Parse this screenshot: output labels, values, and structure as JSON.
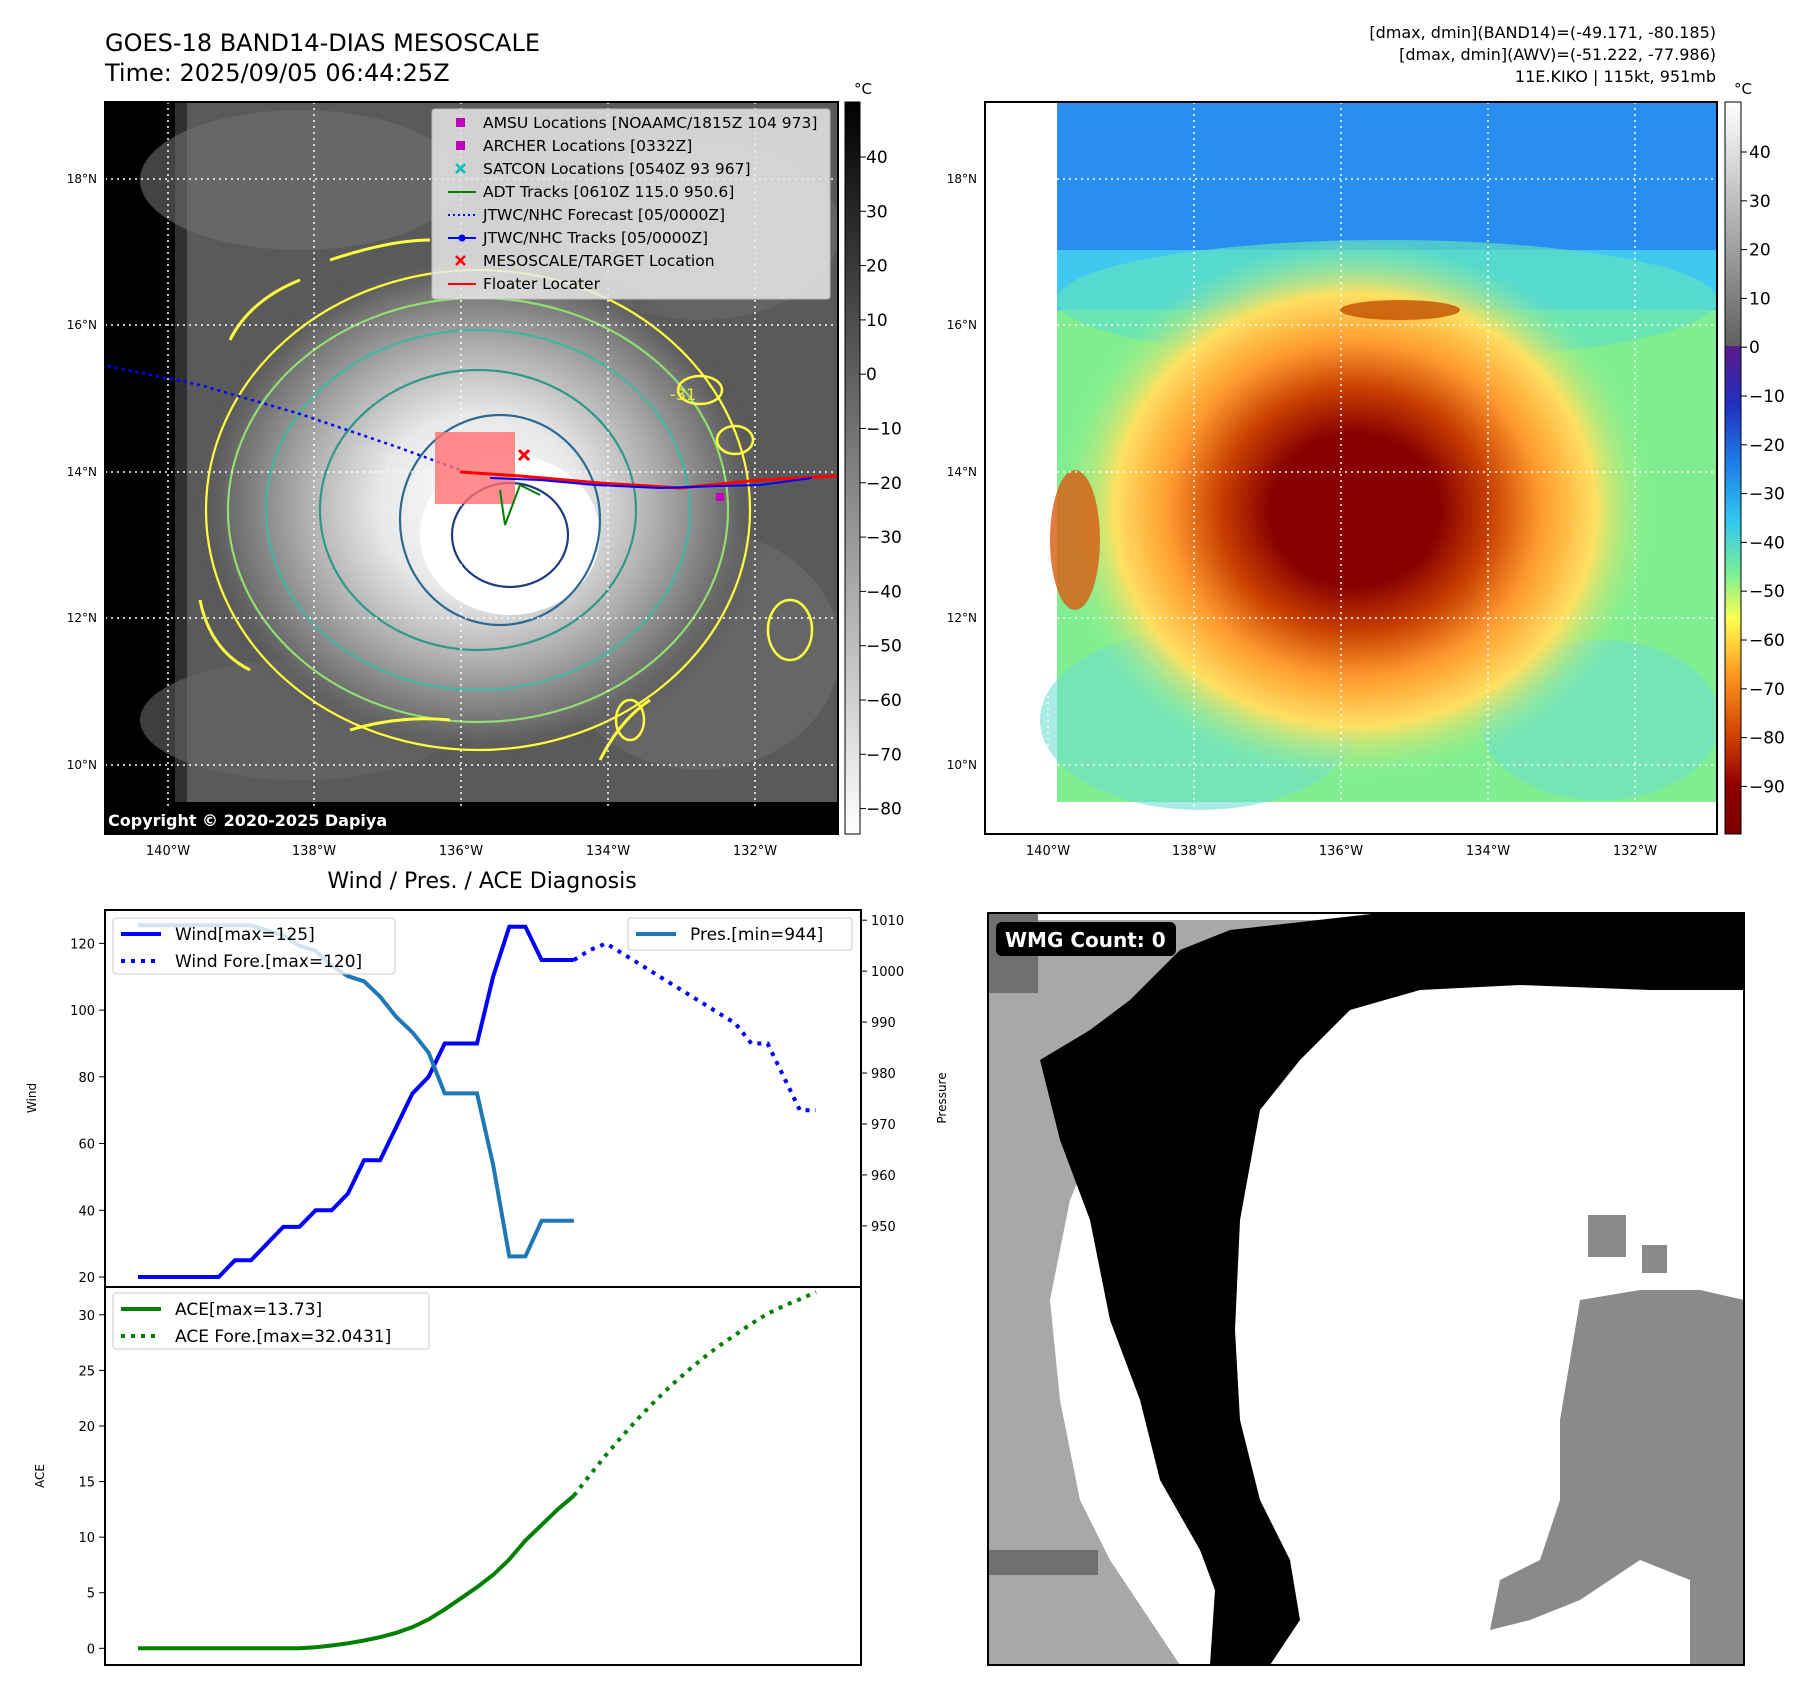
{
  "header": {
    "title_line1": "GOES-18 BAND14-DIAS MESOSCALE",
    "title_line2": "Time: 2025/09/05 06:44:25Z",
    "stats_line1": "[dmax, dmin](BAND14)=(-49.171, -80.185)",
    "stats_line2": "[dmax, dmin](AWV)=(-51.222, -77.986)",
    "stats_line3": "11E.KIKO | 115kt, 951mb"
  },
  "map_ir": {
    "copyright": "Copyright © 2020-2025 Dapiya",
    "legend": [
      {
        "label": "AMSU Locations [NOAAMC/1815Z 104 973]",
        "color": "#c000c0",
        "marker": "square"
      },
      {
        "label": "ARCHER Locations [0332Z]",
        "color": "#c000c0",
        "marker": "square"
      },
      {
        "label": "SATCON Locations [0540Z 93 967]",
        "color": "#00bfbf",
        "marker": "x"
      },
      {
        "label": "ADT Tracks [0610Z 115.0 950.6]",
        "color": "#008000",
        "marker": "line"
      },
      {
        "label": "JTWC/NHC Forecast [05/0000Z]",
        "color": "#0000ff",
        "marker": "dotted"
      },
      {
        "label": "JTWC/NHC Tracks [05/0000Z]",
        "color": "#0000ff",
        "marker": "line-dot"
      },
      {
        "label": "MESOSCALE/TARGET Location",
        "color": "#ff0000",
        "marker": "x"
      },
      {
        "label": "Floater Locater",
        "color": "#ff0000",
        "marker": "line"
      }
    ],
    "contour_label": "-31",
    "colorbar_unit": "°C",
    "colorbar_ticks": [
      "40",
      "30",
      "20",
      "10",
      "0",
      "−10",
      "−20",
      "−30",
      "−40",
      "−50",
      "−60",
      "−70",
      "−80"
    ]
  },
  "map_awv": {
    "colorbar_unit": "°C",
    "colorbar_ticks": [
      "40",
      "30",
      "20",
      "10",
      "0",
      "−10",
      "−20",
      "−30",
      "−40",
      "−50",
      "−60",
      "−70",
      "−80",
      "−90"
    ]
  },
  "map_axes": {
    "lat_labels": [
      "18°N",
      "16°N",
      "14°N",
      "12°N",
      "10°N"
    ],
    "lon_labels": [
      "140°W",
      "138°W",
      "136°W",
      "134°W",
      "132°W"
    ]
  },
  "wmg": {
    "label": "WMG Count: 0"
  },
  "colors": {
    "wind": "#0000ff",
    "pressure": "#1f77b4",
    "ace": "#008000"
  },
  "chart_data": [
    {
      "type": "line",
      "title": "Wind / Pres. / ACE Diagnosis",
      "ylabel": "Wind",
      "y2label": "Pressure",
      "ylim": [
        17,
        130
      ],
      "y2lim": [
        938,
        1012
      ],
      "yticks": [
        20,
        40,
        60,
        80,
        100,
        120
      ],
      "y2ticks": [
        950,
        960,
        970,
        980,
        990,
        1000,
        1010
      ],
      "series": [
        {
          "name": "Wind[max=125]",
          "style": "solid",
          "axis": "left",
          "x": [
            0,
            5,
            6,
            7,
            8,
            9,
            10,
            11,
            12,
            13,
            14,
            15,
            16,
            17,
            18,
            19,
            20,
            21,
            22,
            23,
            24,
            25,
            26,
            27
          ],
          "values": [
            20,
            20,
            25,
            25,
            30,
            35,
            35,
            40,
            40,
            45,
            55,
            55,
            65,
            75,
            80,
            90,
            90,
            90,
            110,
            125,
            125,
            115,
            115,
            115
          ]
        },
        {
          "name": "Wind Fore.[max=120]",
          "style": "dotted",
          "axis": "left",
          "x": [
            27,
            28,
            29,
            30,
            31,
            32,
            33,
            34,
            35,
            36,
            37,
            38,
            39,
            40,
            41,
            42
          ],
          "values": [
            115,
            118,
            120,
            117,
            114,
            111,
            108,
            105,
            102,
            99,
            96,
            90,
            90,
            80,
            70,
            70
          ]
        },
        {
          "name": "Pres.[min=944]",
          "style": "solid",
          "axis": "right",
          "x": [
            0,
            5,
            6,
            7,
            8,
            9,
            10,
            11,
            12,
            13,
            14,
            15,
            16,
            17,
            18,
            19,
            20,
            21,
            22,
            23,
            24,
            25,
            26,
            27
          ],
          "values": [
            1009,
            1009,
            1009,
            1009,
            1008,
            1007,
            1005,
            1004,
            1001,
            999,
            998,
            995,
            991,
            988,
            984,
            976,
            976,
            976,
            962,
            944,
            944,
            951,
            951,
            951
          ]
        }
      ]
    },
    {
      "type": "line",
      "ylabel": "ACE",
      "ylim": [
        -1.5,
        32.5
      ],
      "yticks": [
        0,
        5,
        10,
        15,
        20,
        25,
        30
      ],
      "series": [
        {
          "name": "ACE[max=13.73]",
          "style": "solid",
          "x": [
            0,
            4,
            8,
            9,
            10,
            11,
            12,
            13,
            14,
            15,
            16,
            17,
            18,
            19,
            20,
            21,
            22,
            23,
            24,
            25,
            26,
            27
          ],
          "values": [
            0,
            0,
            0,
            0,
            0,
            0.1,
            0.25,
            0.45,
            0.7,
            1.0,
            1.4,
            1.9,
            2.6,
            3.5,
            4.5,
            5.5,
            6.6,
            8.0,
            9.7,
            11.1,
            12.5,
            13.73
          ]
        },
        {
          "name": "ACE Fore.[max=32.0431]",
          "style": "dotted",
          "x": [
            27,
            28,
            29,
            30,
            31,
            32,
            33,
            34,
            35,
            36,
            37,
            38,
            39,
            40,
            41,
            42
          ],
          "values": [
            13.73,
            15.6,
            17.4,
            19.1,
            20.7,
            22.2,
            23.6,
            24.9,
            26.1,
            27.2,
            28.2,
            29.2,
            30.1,
            30.8,
            31.4,
            32.04
          ]
        }
      ]
    }
  ]
}
